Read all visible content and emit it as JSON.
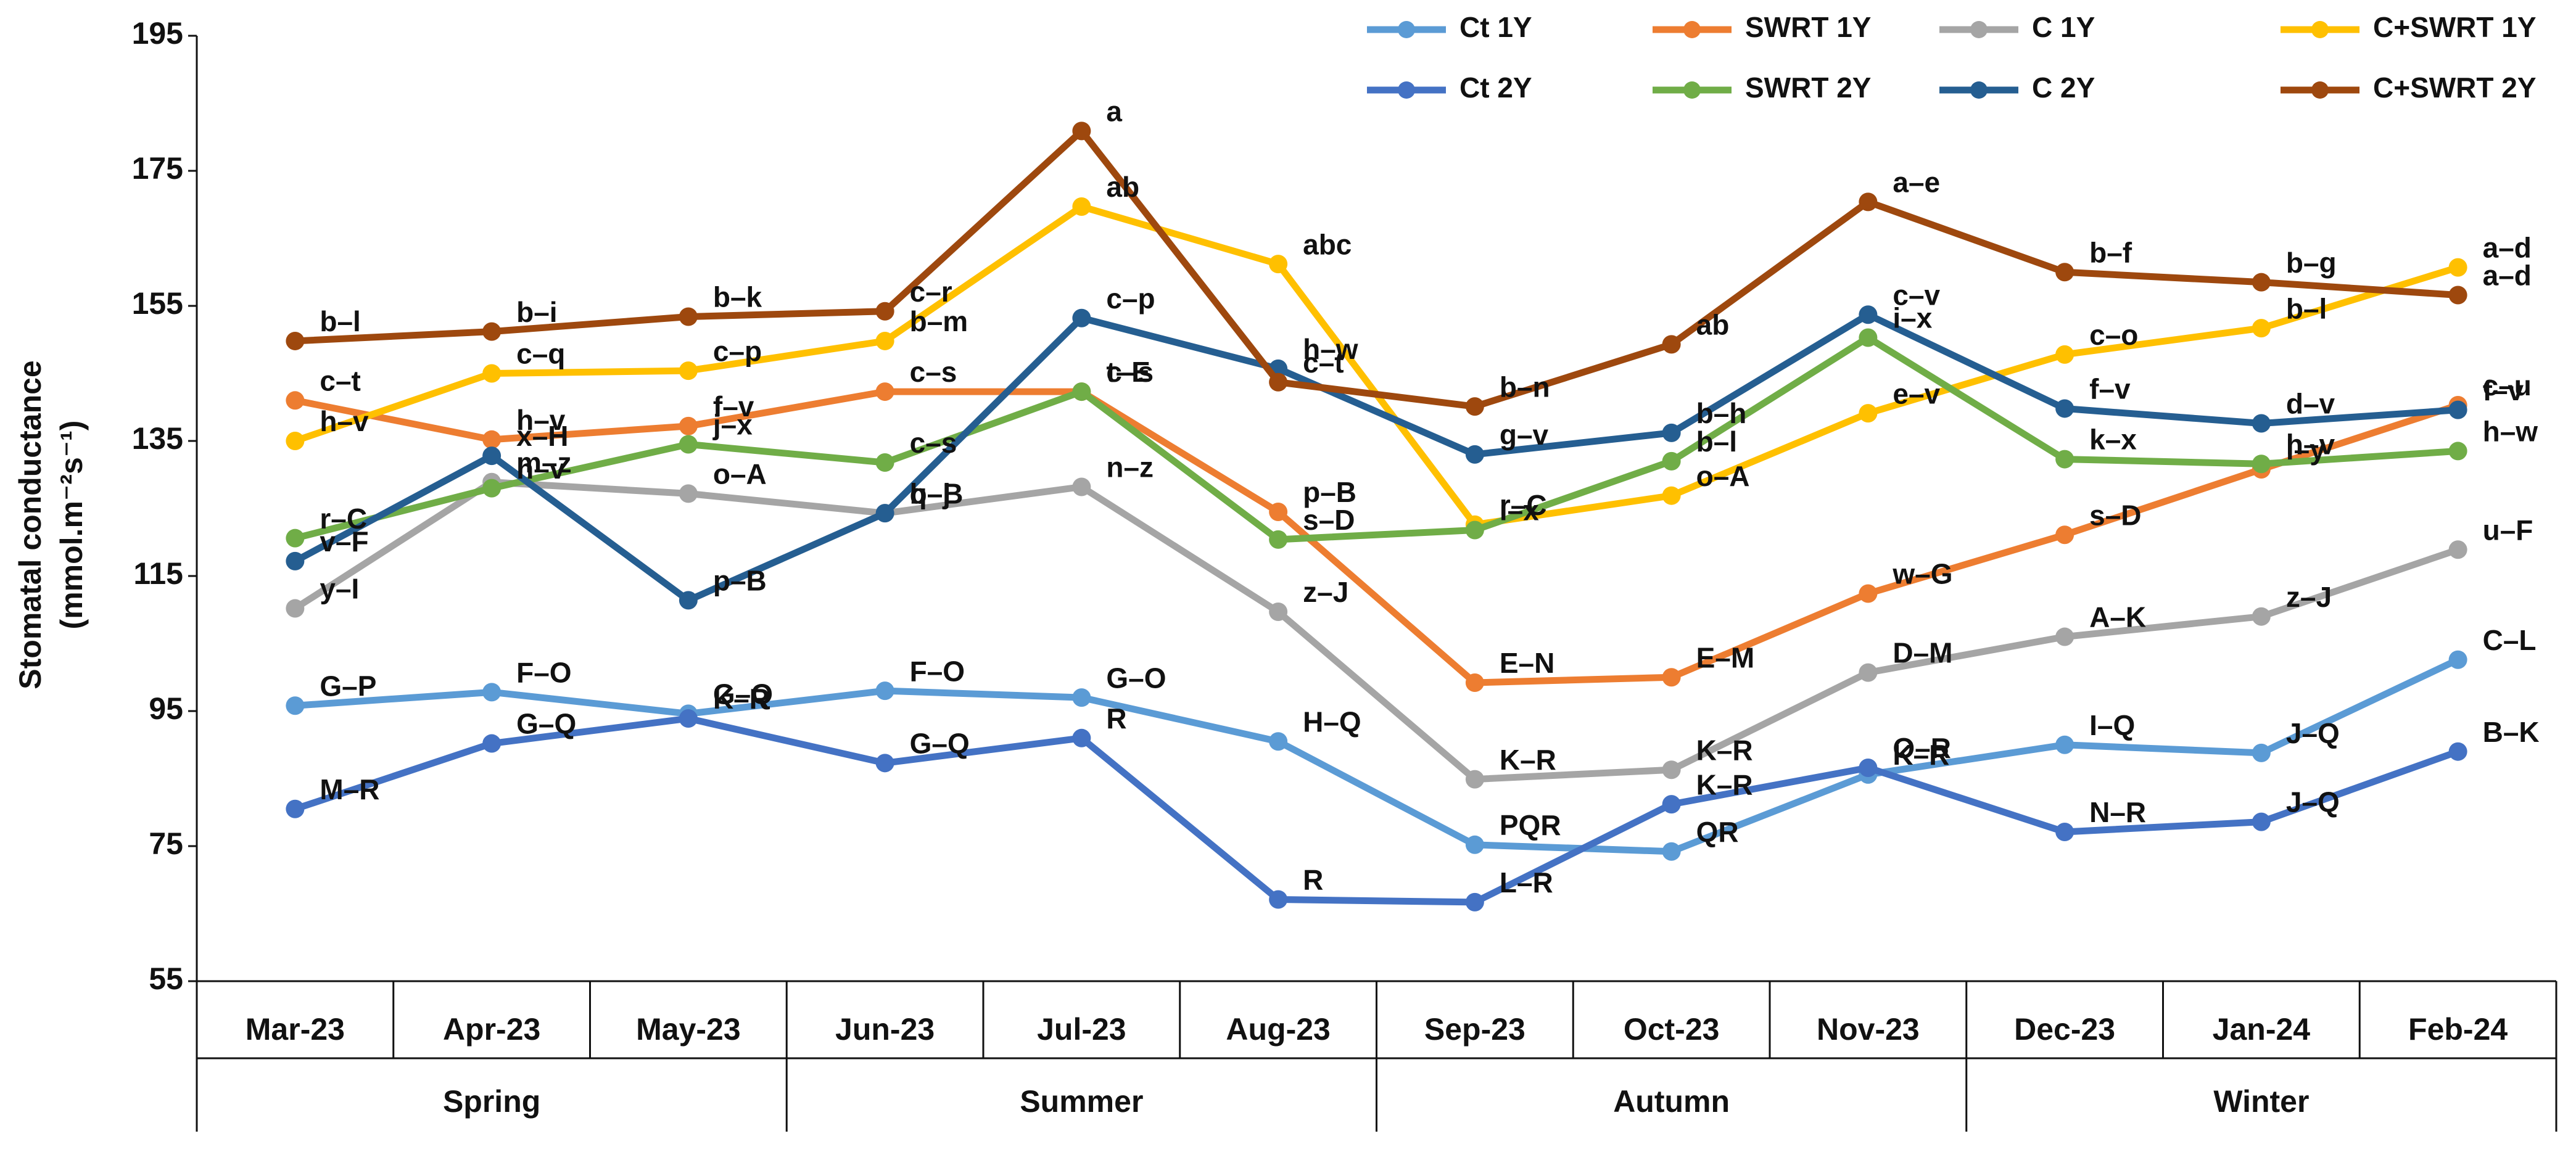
{
  "chart_data": {
    "type": "line",
    "ylabel": "Stomatal conductance",
    "ylabel_unit": "(mmol.m⁻²s⁻¹)",
    "categories": [
      "Mar-23",
      "Apr-23",
      "May-23",
      "Jun-23",
      "Jul-23",
      "Aug-23",
      "Sep-23",
      "Oct-23",
      "Nov-23",
      "Dec-23",
      "Jan-24",
      "Feb-24"
    ],
    "category_groups": [
      "Spring",
      "Summer",
      "Autumn",
      "Winter"
    ],
    "ylim": [
      55,
      195
    ],
    "yticks": [
      55,
      75,
      95,
      115,
      135,
      155,
      175,
      195
    ],
    "grid": false,
    "markers": true,
    "legend": "top-right",
    "series": [
      {
        "name": "Ct 1Y",
        "color": "#5b9bd5",
        "values": [
          95.8,
          97.8,
          94.6,
          98.0,
          97.0,
          90.5,
          75.2,
          74.2,
          85.6,
          90.0,
          88.8,
          102.6
        ],
        "point_labels": [
          "G–P",
          "F–O",
          "G–Q",
          "F–O",
          "G–O",
          "H–Q",
          "PQR",
          "QR",
          "K–R",
          "I–Q",
          "J–Q",
          "C–L"
        ]
      },
      {
        "name": "SWRT 1Y",
        "color": "#ed7d31",
        "values": [
          141.0,
          135.2,
          137.2,
          142.3,
          142.3,
          124.5,
          99.2,
          100.0,
          112.4,
          121.1,
          130.8,
          140.3
        ],
        "point_labels": [
          "c–t",
          "h–v",
          "f–v",
          "c–s",
          "c–s",
          "p–B",
          "E–N",
          "E–M",
          "w–G",
          "s–D",
          "l–y",
          "c–u"
        ]
      },
      {
        "name": "C 1Y",
        "color": "#a5a5a5",
        "values": [
          110.2,
          128.9,
          127.2,
          124.3,
          128.2,
          109.7,
          84.9,
          86.3,
          100.7,
          106.0,
          109.0,
          118.9
        ],
        "point_labels": [
          "y–I",
          "m–z",
          "o–A",
          "q–B",
          "n–z",
          "z–J",
          "K–R",
          "K–R",
          "D–M",
          "A–K",
          "z–J",
          "u–F"
        ]
      },
      {
        "name": "C+SWRT 1Y",
        "color": "#ffc000",
        "values": [
          135.0,
          145.0,
          145.4,
          149.8,
          169.7,
          161.2,
          122.6,
          126.9,
          139.1,
          147.8,
          151.7,
          160.7
        ],
        "point_labels": [
          "h–v",
          "c–q",
          "c–p",
          "b–m",
          "ab",
          "abc",
          "r–C",
          "o–A",
          "e–v",
          "c–o",
          "b–l",
          "a–d"
        ]
      },
      {
        "name": "Ct 2Y",
        "color": "#4472c4",
        "values": [
          80.5,
          90.2,
          93.9,
          87.3,
          91.0,
          67.1,
          66.7,
          81.2,
          86.6,
          77.1,
          78.6,
          89.0
        ],
        "point_labels": [
          "M–R",
          "G–Q",
          "K–R",
          "G–Q",
          "R",
          "R",
          "L–R",
          "K–R",
          "O–R",
          "N–R",
          "J–Q",
          "B–K"
        ]
      },
      {
        "name": "SWRT 2Y",
        "color": "#70ad47",
        "values": [
          120.6,
          128.0,
          134.5,
          131.8,
          142.3,
          120.4,
          121.8,
          132.0,
          150.3,
          132.3,
          131.6,
          133.5
        ],
        "point_labels": [
          "r–C",
          "h–v",
          "j–x",
          "c–s",
          "t–E",
          "s–D",
          "i–x",
          "b–l",
          "i–x",
          "k–x",
          "h–v",
          "h–w"
        ]
      },
      {
        "name": "C 2Y",
        "color": "#255e91",
        "values": [
          117.2,
          132.8,
          111.4,
          124.3,
          153.2,
          145.7,
          133.0,
          136.2,
          153.7,
          139.8,
          137.6,
          139.6
        ],
        "point_labels": [
          "v–F",
          "x–H",
          "p–B",
          "b–j",
          "c–p",
          "h–w",
          "g–v",
          "b–h",
          "c–v",
          "f–v",
          "d–v",
          "f–v"
        ]
      },
      {
        "name": "C+SWRT 2Y",
        "color": "#9e480e",
        "values": [
          149.8,
          151.2,
          153.4,
          154.2,
          180.9,
          143.7,
          140.1,
          149.3,
          170.4,
          160.0,
          158.5,
          156.6
        ],
        "point_labels": [
          "b–l",
          "b–i",
          "b–k",
          "c–r",
          "a",
          "c–t",
          "b–n",
          "ab",
          "a–e",
          "b–f",
          "b–g",
          "a–d"
        ]
      }
    ]
  }
}
